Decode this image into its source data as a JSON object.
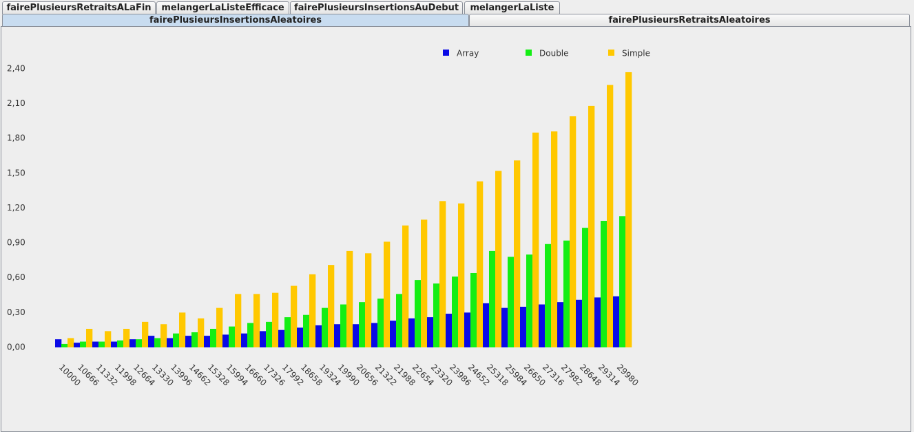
{
  "tabs": {
    "row1": [
      "fairePlusieursRetraitsALaFin",
      "melangerLaListeEfficace",
      "fairePlusieursInsertionsAuDebut",
      "melangerLaListe"
    ],
    "row2": [
      "fairePlusieursInsertionsAleatoires",
      "fairePlusieursRetraitsAleatoires"
    ]
  },
  "chart_data": {
    "type": "bar",
    "categories": [
      "10000",
      "10666",
      "11332",
      "11998",
      "12664",
      "13330",
      "13996",
      "14662",
      "15328",
      "15994",
      "16660",
      "17326",
      "17992",
      "18658",
      "19324",
      "19990",
      "20656",
      "21322",
      "21988",
      "22654",
      "23320",
      "23986",
      "24652",
      "25318",
      "25984",
      "26650",
      "27316",
      "27982",
      "28648",
      "29314",
      "29980"
    ],
    "series": [
      {
        "name": "Array",
        "color": "#0a0ae6",
        "values": [
          0.07,
          0.04,
          0.05,
          0.05,
          0.07,
          0.1,
          0.08,
          0.1,
          0.1,
          0.11,
          0.12,
          0.14,
          0.15,
          0.17,
          0.19,
          0.2,
          0.2,
          0.21,
          0.23,
          0.25,
          0.26,
          0.29,
          0.3,
          0.38,
          0.34,
          0.35,
          0.37,
          0.39,
          0.41,
          0.43,
          0.44
        ]
      },
      {
        "name": "Double",
        "color": "#14ee14",
        "values": [
          0.03,
          0.05,
          0.05,
          0.06,
          0.07,
          0.08,
          0.12,
          0.13,
          0.16,
          0.18,
          0.21,
          0.22,
          0.26,
          0.28,
          0.34,
          0.37,
          0.39,
          0.42,
          0.46,
          0.58,
          0.55,
          0.61,
          0.64,
          0.83,
          0.78,
          0.8,
          0.89,
          0.92,
          1.03,
          1.09,
          1.13
        ]
      },
      {
        "name": "Simple",
        "color": "#ffc800",
        "values": [
          0.08,
          0.16,
          0.14,
          0.16,
          0.22,
          0.2,
          0.3,
          0.25,
          0.34,
          0.46,
          0.46,
          0.47,
          0.53,
          0.63,
          0.71,
          0.83,
          0.81,
          0.91,
          1.05,
          1.1,
          1.26,
          1.24,
          1.43,
          1.52,
          1.61,
          1.85,
          1.86,
          1.99,
          2.08,
          2.26,
          2.37
        ]
      }
    ],
    "ylim": [
      0,
      2.5
    ],
    "yticks": [
      {
        "value": 0,
        "label": "0,00"
      },
      {
        "value": 0.3,
        "label": "0,30"
      },
      {
        "value": 0.6,
        "label": "0,60"
      },
      {
        "value": 0.9,
        "label": "0,90"
      },
      {
        "value": 1.2,
        "label": "1,20"
      },
      {
        "value": 1.5,
        "label": "1,50"
      },
      {
        "value": 1.8,
        "label": "1,80"
      },
      {
        "value": 2.1,
        "label": "2,10"
      },
      {
        "value": 2.4,
        "label": "2,40"
      }
    ]
  }
}
